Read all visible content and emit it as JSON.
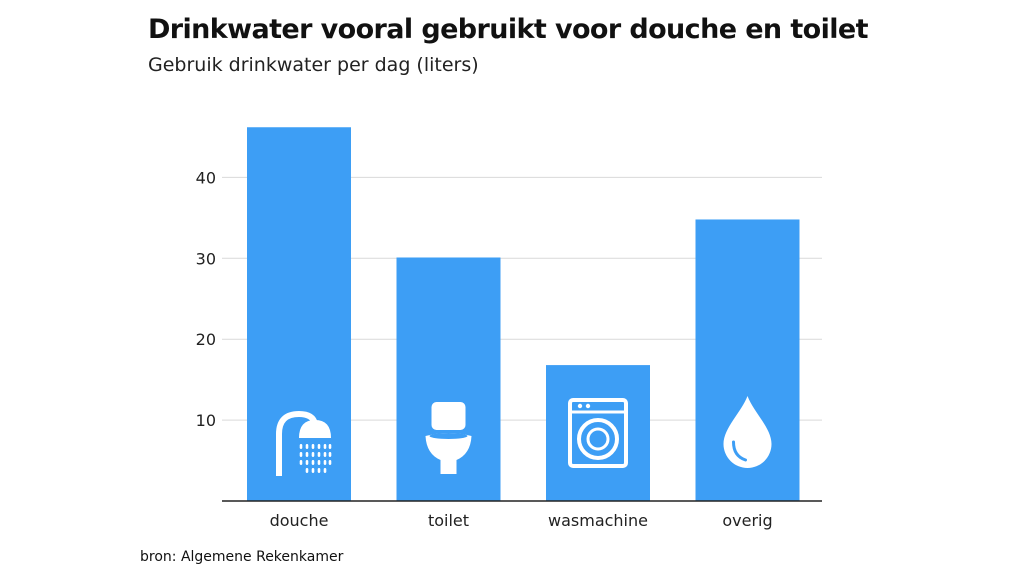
{
  "title": "Drinkwater vooral gebruikt voor douche en toilet",
  "subtitle": "Gebruik drinkwater per dag (liters)",
  "source": "bron: Algemene Rekenkamer",
  "chart_data": {
    "type": "bar",
    "title": "Drinkwater vooral gebruikt voor douche en toilet",
    "subtitle": "Gebruik drinkwater per dag (liters)",
    "categories": [
      "douche",
      "toilet",
      "wasmachine",
      "overig"
    ],
    "values": [
      46.2,
      30.1,
      16.8,
      34.8
    ],
    "icons": [
      "shower-icon",
      "toilet-icon",
      "washing-machine-icon",
      "water-drop-icon"
    ],
    "yticks": [
      10,
      20,
      30,
      40
    ],
    "ylim": [
      0,
      47
    ],
    "grid": true,
    "bar_color": "#3d9ef5",
    "grid_color": "#d9d9d9",
    "axis_color": "#222222"
  }
}
